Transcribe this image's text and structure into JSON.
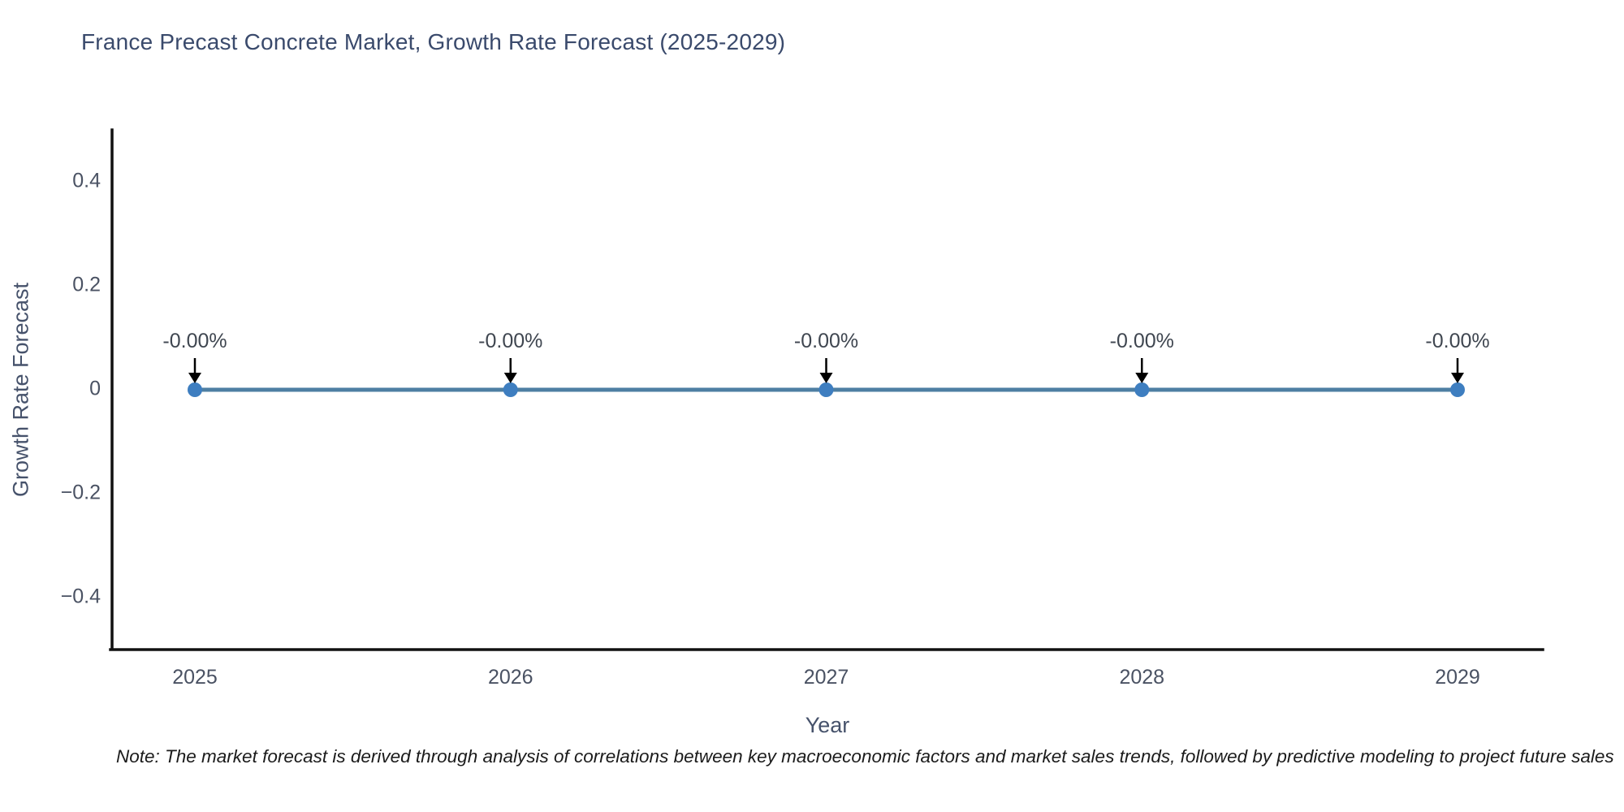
{
  "title": "France Precast Concrete Market, Growth Rate Forecast (2025-2029)",
  "note": "Note: The market forecast is derived through analysis of correlations between key macroeconomic factors and market sales trends, followed by predictive modeling to project future sales",
  "chart_data": {
    "type": "line",
    "title": "France Precast Concrete Market, Growth Rate Forecast (2025-2029)",
    "x": [
      2025,
      2026,
      2027,
      2028,
      2029
    ],
    "series": [
      {
        "name": "Growth Rate Forecast",
        "values": [
          0,
          0,
          0,
          0,
          0
        ]
      }
    ],
    "point_labels": [
      "-0.00%",
      "-0.00%",
      "-0.00%",
      "-0.00%",
      "-0.00%"
    ],
    "xlabel": "Year",
    "ylabel": "Growth Rate Forecast",
    "ylim": [
      -0.5,
      0.5
    ],
    "yticks": [
      0.4,
      0.2,
      0,
      -0.2,
      -0.4
    ],
    "ytick_labels": [
      "0.4",
      "0.2",
      "0",
      "−0.2",
      "−0.4"
    ],
    "xtick_labels": [
      "2025",
      "2026",
      "2027",
      "2028",
      "2029"
    ],
    "grid": false,
    "legend": "none",
    "colors": {
      "line": "#4e7fa3",
      "marker": "#3e7ec0",
      "axis": "#111111",
      "title_text": "#3a4a6c",
      "axis_title_text": "#46526b",
      "tick_text": "#4a5263",
      "annotation_text": "#3f4650",
      "arrow": "#000000",
      "background": "#ffffff"
    }
  }
}
